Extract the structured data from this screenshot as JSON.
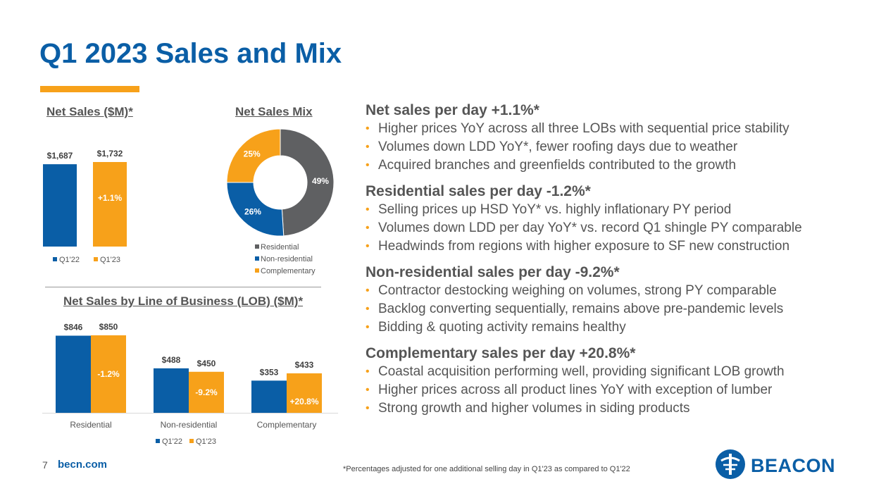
{
  "page": {
    "title": "Q1 2023 Sales and Mix",
    "page_number": "7",
    "site": "becn.com",
    "footnote": "*Percentages adjusted for one additional selling day in Q1'23 as compared to Q1'22",
    "logo_text": "BEACON"
  },
  "colors": {
    "blue": "#0a5ea6",
    "orange": "#f7a11a",
    "gray": "#5f6062"
  },
  "chart_data": [
    {
      "type": "bar",
      "title": "Net Sales ($M)*",
      "categories": [
        "Q1'22",
        "Q1'23"
      ],
      "values": [
        1687,
        1732
      ],
      "value_labels": [
        "$1,687",
        "$1,732"
      ],
      "annotation": "+1.1%",
      "legend": [
        "Q1'22",
        "Q1'23"
      ],
      "legend_position": "bottom"
    },
    {
      "type": "pie",
      "title": "Net Sales Mix",
      "labels": [
        "Residential",
        "Non-residential",
        "Complementary"
      ],
      "values": [
        49,
        26,
        25
      ],
      "value_labels": [
        "49%",
        "26%",
        "25%"
      ],
      "legend_position": "bottom"
    },
    {
      "type": "bar",
      "title": "Net Sales by Line of Business (LOB) ($M)*",
      "categories": [
        "Residential",
        "Non-residential",
        "Complementary"
      ],
      "series": [
        {
          "name": "Q1'22",
          "values": [
            846,
            488,
            353
          ],
          "value_labels": [
            "$846",
            "$488",
            "$353"
          ]
        },
        {
          "name": "Q1'23",
          "values": [
            850,
            450,
            433
          ],
          "value_labels": [
            "$850",
            "$450",
            "$433"
          ],
          "annotations": [
            "-1.2%",
            "-9.2%",
            "+20.8%"
          ]
        }
      ],
      "legend_position": "bottom"
    }
  ],
  "sections": [
    {
      "heading": "Net sales per day +1.1%*",
      "bullets": [
        "Higher prices YoY across all three LOBs with sequential price stability",
        "Volumes down LDD YoY*, fewer roofing days due to weather",
        "Acquired branches and greenfields contributed to the growth"
      ]
    },
    {
      "heading": "Residential sales per day -1.2%*",
      "bullets": [
        "Selling prices up HSD YoY* vs. highly inflationary PY period",
        "Volumes down LDD per day YoY* vs. record Q1 shingle PY comparable",
        "Headwinds from regions with higher exposure to SF new construction"
      ]
    },
    {
      "heading": "Non-residential sales per day -9.2%*",
      "bullets": [
        "Contractor destocking weighing on volumes, strong PY comparable",
        "Backlog converting sequentially, remains above pre-pandemic levels",
        "Bidding & quoting activity remains healthy"
      ]
    },
    {
      "heading": "Complementary sales per day +20.8%*",
      "bullets": [
        "Coastal acquisition performing well, providing significant LOB growth",
        "Higher prices across all product lines YoY with exception of lumber",
        "Strong growth and higher volumes in siding products"
      ]
    }
  ]
}
